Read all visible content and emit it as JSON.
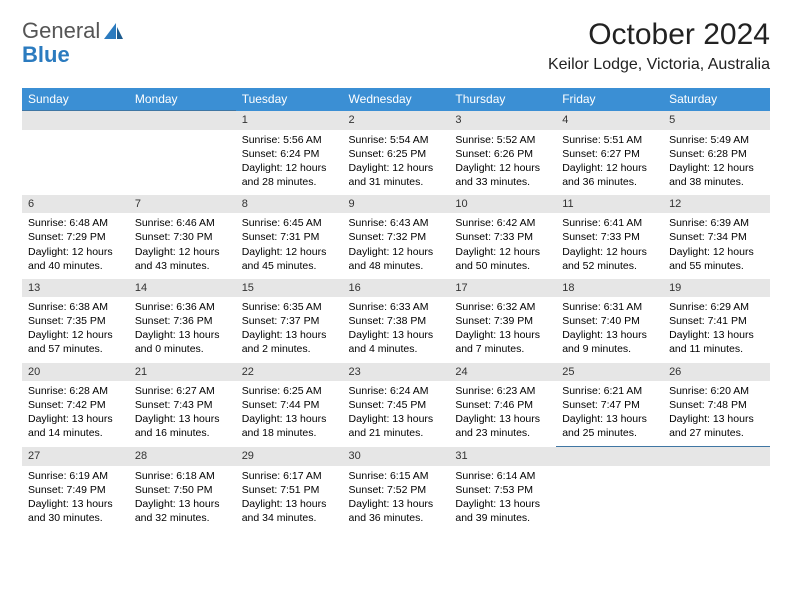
{
  "logo": {
    "text1": "General",
    "text2": "Blue"
  },
  "title": "October 2024",
  "location": "Keilor Lodge, Victoria, Australia",
  "colors": {
    "header_bg": "#3b8fd4",
    "header_text": "#ffffff",
    "daynum_bg": "#e6e6e6",
    "daynum_border": "#4076a3",
    "logo_gray": "#555555",
    "logo_blue": "#2b7bbf"
  },
  "dow": [
    "Sunday",
    "Monday",
    "Tuesday",
    "Wednesday",
    "Thursday",
    "Friday",
    "Saturday"
  ],
  "weeks": [
    [
      null,
      null,
      {
        "n": "1",
        "sr": "5:56 AM",
        "ss": "6:24 PM",
        "dl": "12 hours and 28 minutes."
      },
      {
        "n": "2",
        "sr": "5:54 AM",
        "ss": "6:25 PM",
        "dl": "12 hours and 31 minutes."
      },
      {
        "n": "3",
        "sr": "5:52 AM",
        "ss": "6:26 PM",
        "dl": "12 hours and 33 minutes."
      },
      {
        "n": "4",
        "sr": "5:51 AM",
        "ss": "6:27 PM",
        "dl": "12 hours and 36 minutes."
      },
      {
        "n": "5",
        "sr": "5:49 AM",
        "ss": "6:28 PM",
        "dl": "12 hours and 38 minutes."
      }
    ],
    [
      {
        "n": "6",
        "sr": "6:48 AM",
        "ss": "7:29 PM",
        "dl": "12 hours and 40 minutes."
      },
      {
        "n": "7",
        "sr": "6:46 AM",
        "ss": "7:30 PM",
        "dl": "12 hours and 43 minutes."
      },
      {
        "n": "8",
        "sr": "6:45 AM",
        "ss": "7:31 PM",
        "dl": "12 hours and 45 minutes."
      },
      {
        "n": "9",
        "sr": "6:43 AM",
        "ss": "7:32 PM",
        "dl": "12 hours and 48 minutes."
      },
      {
        "n": "10",
        "sr": "6:42 AM",
        "ss": "7:33 PM",
        "dl": "12 hours and 50 minutes."
      },
      {
        "n": "11",
        "sr": "6:41 AM",
        "ss": "7:33 PM",
        "dl": "12 hours and 52 minutes."
      },
      {
        "n": "12",
        "sr": "6:39 AM",
        "ss": "7:34 PM",
        "dl": "12 hours and 55 minutes."
      }
    ],
    [
      {
        "n": "13",
        "sr": "6:38 AM",
        "ss": "7:35 PM",
        "dl": "12 hours and 57 minutes."
      },
      {
        "n": "14",
        "sr": "6:36 AM",
        "ss": "7:36 PM",
        "dl": "13 hours and 0 minutes."
      },
      {
        "n": "15",
        "sr": "6:35 AM",
        "ss": "7:37 PM",
        "dl": "13 hours and 2 minutes."
      },
      {
        "n": "16",
        "sr": "6:33 AM",
        "ss": "7:38 PM",
        "dl": "13 hours and 4 minutes."
      },
      {
        "n": "17",
        "sr": "6:32 AM",
        "ss": "7:39 PM",
        "dl": "13 hours and 7 minutes."
      },
      {
        "n": "18",
        "sr": "6:31 AM",
        "ss": "7:40 PM",
        "dl": "13 hours and 9 minutes."
      },
      {
        "n": "19",
        "sr": "6:29 AM",
        "ss": "7:41 PM",
        "dl": "13 hours and 11 minutes."
      }
    ],
    [
      {
        "n": "20",
        "sr": "6:28 AM",
        "ss": "7:42 PM",
        "dl": "13 hours and 14 minutes."
      },
      {
        "n": "21",
        "sr": "6:27 AM",
        "ss": "7:43 PM",
        "dl": "13 hours and 16 minutes."
      },
      {
        "n": "22",
        "sr": "6:25 AM",
        "ss": "7:44 PM",
        "dl": "13 hours and 18 minutes."
      },
      {
        "n": "23",
        "sr": "6:24 AM",
        "ss": "7:45 PM",
        "dl": "13 hours and 21 minutes."
      },
      {
        "n": "24",
        "sr": "6:23 AM",
        "ss": "7:46 PM",
        "dl": "13 hours and 23 minutes."
      },
      {
        "n": "25",
        "sr": "6:21 AM",
        "ss": "7:47 PM",
        "dl": "13 hours and 25 minutes."
      },
      {
        "n": "26",
        "sr": "6:20 AM",
        "ss": "7:48 PM",
        "dl": "13 hours and 27 minutes."
      }
    ],
    [
      {
        "n": "27",
        "sr": "6:19 AM",
        "ss": "7:49 PM",
        "dl": "13 hours and 30 minutes."
      },
      {
        "n": "28",
        "sr": "6:18 AM",
        "ss": "7:50 PM",
        "dl": "13 hours and 32 minutes."
      },
      {
        "n": "29",
        "sr": "6:17 AM",
        "ss": "7:51 PM",
        "dl": "13 hours and 34 minutes."
      },
      {
        "n": "30",
        "sr": "6:15 AM",
        "ss": "7:52 PM",
        "dl": "13 hours and 36 minutes."
      },
      {
        "n": "31",
        "sr": "6:14 AM",
        "ss": "7:53 PM",
        "dl": "13 hours and 39 minutes."
      },
      null,
      null
    ]
  ],
  "labels": {
    "sunrise": "Sunrise:",
    "sunset": "Sunset:",
    "daylight": "Daylight:"
  }
}
